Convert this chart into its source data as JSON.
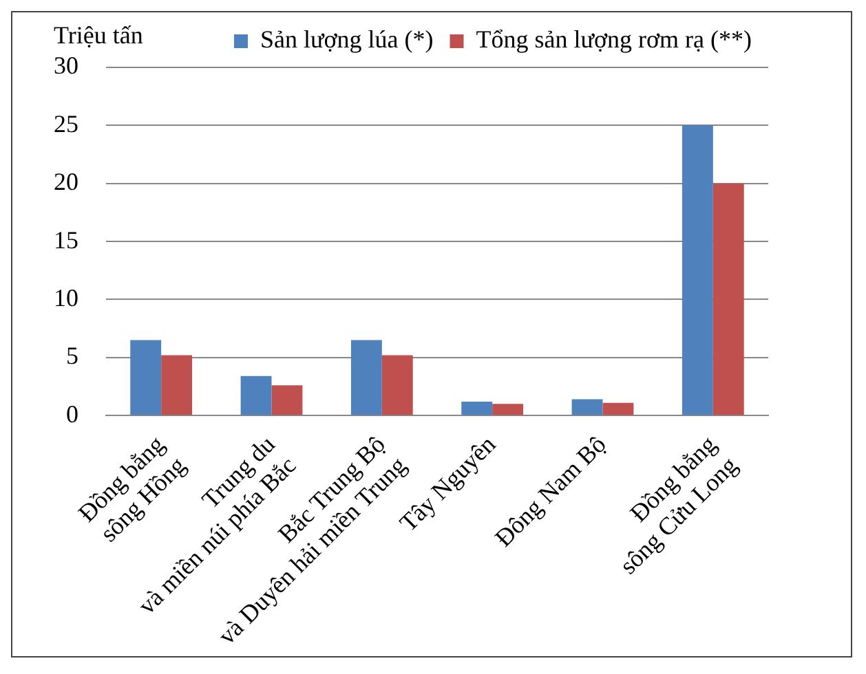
{
  "chart_data": {
    "type": "bar",
    "ylabel": "Triệu tấn",
    "categories": [
      "Đồng bằng\nsông Hồng",
      "Trung du\nvà miền núi phía Bắc",
      "Bắc Trung Bộ\nvà Duyên hải miền Trung",
      "Tây Nguyên",
      "Đông Nam Bộ",
      "Đồng bằng\nsông Cửu Long"
    ],
    "series": [
      {
        "name": "Sản lượng lúa (*)",
        "color": "#4f81bd",
        "values": [
          6.5,
          3.4,
          6.5,
          1.2,
          1.4,
          25
        ]
      },
      {
        "name": "Tổng sản lượng rơm rạ (**)",
        "color": "#c0504d",
        "values": [
          5.2,
          2.6,
          5.2,
          1.0,
          1.1,
          20
        ]
      }
    ],
    "ylim": [
      0,
      30
    ],
    "yticks": [
      0,
      5,
      10,
      15,
      20,
      25,
      30
    ],
    "grid": "y",
    "legend": "top"
  }
}
